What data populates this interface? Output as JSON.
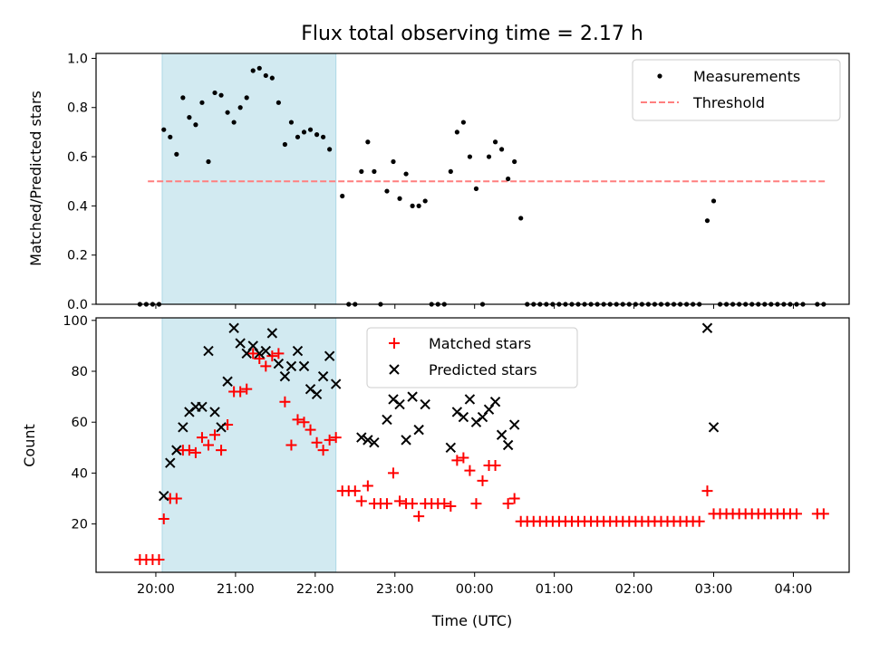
{
  "chart_data": {
    "title": "Flux total observing time = 2.17 h",
    "highlight_span": [
      20.08,
      22.26
    ],
    "xlabel": "Time (UTC)",
    "xlim": [
      19.25,
      28.7
    ],
    "xticks": [
      {
        "value": 20,
        "label": "20:00"
      },
      {
        "value": 21,
        "label": "21:00"
      },
      {
        "value": 22,
        "label": "22:00"
      },
      {
        "value": 23,
        "label": "23:00"
      },
      {
        "value": 24,
        "label": "00:00"
      },
      {
        "value": 25,
        "label": "01:00"
      },
      {
        "value": 26,
        "label": "02:00"
      },
      {
        "value": 27,
        "label": "03:00"
      },
      {
        "value": 28,
        "label": "04:00"
      }
    ],
    "colors": {
      "measurements": "#000000",
      "threshold": "#ff7f7f",
      "matched": "#ff0000",
      "predicted": "#000000",
      "span": "#add8e6"
    },
    "top": {
      "type": "scatter",
      "ylabel": "Matched/Predicted stars",
      "ylim": [
        0,
        1.02
      ],
      "yticks": [
        0.0,
        0.2,
        0.4,
        0.6,
        0.8,
        1.0
      ],
      "ytick_labels": [
        "0.0",
        "0.2",
        "0.4",
        "0.6",
        "0.8",
        "1.0"
      ],
      "legend": {
        "placement": "upper right",
        "measurements_label": "Measurements",
        "threshold_label": "Threshold"
      },
      "threshold": {
        "value": 0.5,
        "x_range": [
          19.9,
          28.4
        ]
      },
      "measurements": [
        [
          19.8,
          0
        ],
        [
          19.88,
          0
        ],
        [
          19.96,
          0
        ],
        [
          20.04,
          0
        ],
        [
          20.1,
          0.71
        ],
        [
          20.18,
          0.68
        ],
        [
          20.26,
          0.61
        ],
        [
          20.34,
          0.84
        ],
        [
          20.42,
          0.76
        ],
        [
          20.5,
          0.73
        ],
        [
          20.58,
          0.82
        ],
        [
          20.66,
          0.58
        ],
        [
          20.74,
          0.86
        ],
        [
          20.82,
          0.85
        ],
        [
          20.9,
          0.78
        ],
        [
          20.98,
          0.74
        ],
        [
          21.06,
          0.8
        ],
        [
          21.14,
          0.84
        ],
        [
          21.22,
          0.95
        ],
        [
          21.3,
          0.96
        ],
        [
          21.38,
          0.93
        ],
        [
          21.46,
          0.92
        ],
        [
          21.54,
          0.82
        ],
        [
          21.62,
          0.65
        ],
        [
          21.7,
          0.74
        ],
        [
          21.78,
          0.68
        ],
        [
          21.86,
          0.7
        ],
        [
          21.94,
          0.71
        ],
        [
          22.02,
          0.69
        ],
        [
          22.1,
          0.68
        ],
        [
          22.18,
          0.63
        ],
        [
          22.34,
          0.44
        ],
        [
          22.42,
          0
        ],
        [
          22.5,
          0
        ],
        [
          22.58,
          0.54
        ],
        [
          22.66,
          0.66
        ],
        [
          22.74,
          0.54
        ],
        [
          22.82,
          0
        ],
        [
          22.9,
          0.46
        ],
        [
          22.98,
          0.58
        ],
        [
          23.06,
          0.43
        ],
        [
          23.14,
          0.53
        ],
        [
          23.22,
          0.4
        ],
        [
          23.3,
          0.4
        ],
        [
          23.38,
          0.42
        ],
        [
          23.46,
          0
        ],
        [
          23.54,
          0
        ],
        [
          23.62,
          0
        ],
        [
          23.7,
          0.54
        ],
        [
          23.78,
          0.7
        ],
        [
          23.86,
          0.74
        ],
        [
          23.94,
          0.6
        ],
        [
          24.02,
          0.47
        ],
        [
          24.1,
          0
        ],
        [
          24.18,
          0.6
        ],
        [
          24.26,
          0.66
        ],
        [
          24.34,
          0.63
        ],
        [
          24.42,
          0.51
        ],
        [
          24.5,
          0.58
        ],
        [
          24.58,
          0.35
        ],
        [
          24.66,
          0
        ],
        [
          24.74,
          0
        ],
        [
          24.82,
          0
        ],
        [
          24.9,
          0
        ],
        [
          24.98,
          0
        ],
        [
          25.06,
          0
        ],
        [
          25.14,
          0
        ],
        [
          25.22,
          0
        ],
        [
          25.3,
          0
        ],
        [
          25.38,
          0
        ],
        [
          25.46,
          0
        ],
        [
          25.54,
          0
        ],
        [
          25.62,
          0
        ],
        [
          25.7,
          0
        ],
        [
          25.78,
          0
        ],
        [
          25.86,
          0
        ],
        [
          25.94,
          0
        ],
        [
          26.02,
          0
        ],
        [
          26.1,
          0
        ],
        [
          26.18,
          0
        ],
        [
          26.26,
          0
        ],
        [
          26.34,
          0
        ],
        [
          26.42,
          0
        ],
        [
          26.5,
          0
        ],
        [
          26.58,
          0
        ],
        [
          26.66,
          0
        ],
        [
          26.74,
          0
        ],
        [
          26.82,
          0
        ],
        [
          26.92,
          0.34
        ],
        [
          27.0,
          0.42
        ],
        [
          27.08,
          0
        ],
        [
          27.16,
          0
        ],
        [
          27.24,
          0
        ],
        [
          27.32,
          0
        ],
        [
          27.4,
          0
        ],
        [
          27.48,
          0
        ],
        [
          27.56,
          0
        ],
        [
          27.64,
          0
        ],
        [
          27.72,
          0
        ],
        [
          27.8,
          0
        ],
        [
          27.88,
          0
        ],
        [
          27.96,
          0
        ],
        [
          28.04,
          0
        ],
        [
          28.12,
          0
        ],
        [
          28.3,
          0
        ],
        [
          28.38,
          0
        ]
      ]
    },
    "bottom": {
      "type": "scatter",
      "ylabel": "Count",
      "ylim": [
        1,
        101
      ],
      "yticks": [
        20,
        40,
        60,
        80,
        100
      ],
      "ytick_labels": [
        "20",
        "40",
        "60",
        "80",
        "100"
      ],
      "legend": {
        "placement": "upper center",
        "matched_label": "Matched stars",
        "predicted_label": "Predicted stars"
      },
      "matched": [
        [
          19.8,
          6
        ],
        [
          19.88,
          6
        ],
        [
          19.96,
          6
        ],
        [
          20.04,
          6
        ],
        [
          20.1,
          22
        ],
        [
          20.18,
          30
        ],
        [
          20.26,
          30
        ],
        [
          20.34,
          49
        ],
        [
          20.42,
          49
        ],
        [
          20.5,
          48
        ],
        [
          20.58,
          54
        ],
        [
          20.66,
          51
        ],
        [
          20.74,
          55
        ],
        [
          20.82,
          49
        ],
        [
          20.9,
          59
        ],
        [
          20.98,
          72
        ],
        [
          21.06,
          72
        ],
        [
          21.14,
          73
        ],
        [
          21.22,
          87
        ],
        [
          21.3,
          85
        ],
        [
          21.38,
          82
        ],
        [
          21.46,
          86
        ],
        [
          21.54,
          87
        ],
        [
          21.62,
          68
        ],
        [
          21.7,
          51
        ],
        [
          21.78,
          61
        ],
        [
          21.86,
          60
        ],
        [
          21.94,
          57
        ],
        [
          22.02,
          52
        ],
        [
          22.1,
          49
        ],
        [
          22.18,
          53
        ],
        [
          22.26,
          54
        ],
        [
          22.34,
          33
        ],
        [
          22.42,
          33
        ],
        [
          22.5,
          33
        ],
        [
          22.58,
          29
        ],
        [
          22.66,
          35
        ],
        [
          22.74,
          28
        ],
        [
          22.82,
          28
        ],
        [
          22.9,
          28
        ],
        [
          22.98,
          40
        ],
        [
          23.06,
          29
        ],
        [
          23.14,
          28
        ],
        [
          23.22,
          28
        ],
        [
          23.3,
          23
        ],
        [
          23.38,
          28
        ],
        [
          23.46,
          28
        ],
        [
          23.54,
          28
        ],
        [
          23.62,
          28
        ],
        [
          23.7,
          27
        ],
        [
          23.78,
          45
        ],
        [
          23.86,
          46
        ],
        [
          23.94,
          41
        ],
        [
          24.02,
          28
        ],
        [
          24.1,
          37
        ],
        [
          24.18,
          43
        ],
        [
          24.26,
          43
        ],
        [
          24.42,
          28
        ],
        [
          24.5,
          30
        ],
        [
          24.58,
          21
        ],
        [
          24.66,
          21
        ],
        [
          24.74,
          21
        ],
        [
          24.82,
          21
        ],
        [
          24.9,
          21
        ],
        [
          24.98,
          21
        ],
        [
          25.06,
          21
        ],
        [
          25.14,
          21
        ],
        [
          25.22,
          21
        ],
        [
          25.3,
          21
        ],
        [
          25.38,
          21
        ],
        [
          25.46,
          21
        ],
        [
          25.54,
          21
        ],
        [
          25.62,
          21
        ],
        [
          25.7,
          21
        ],
        [
          25.78,
          21
        ],
        [
          25.86,
          21
        ],
        [
          25.94,
          21
        ],
        [
          26.02,
          21
        ],
        [
          26.1,
          21
        ],
        [
          26.18,
          21
        ],
        [
          26.26,
          21
        ],
        [
          26.34,
          21
        ],
        [
          26.42,
          21
        ],
        [
          26.5,
          21
        ],
        [
          26.58,
          21
        ],
        [
          26.66,
          21
        ],
        [
          26.74,
          21
        ],
        [
          26.82,
          21
        ],
        [
          26.92,
          33
        ],
        [
          27.0,
          24
        ],
        [
          27.08,
          24
        ],
        [
          27.16,
          24
        ],
        [
          27.24,
          24
        ],
        [
          27.32,
          24
        ],
        [
          27.4,
          24
        ],
        [
          27.48,
          24
        ],
        [
          27.56,
          24
        ],
        [
          27.64,
          24
        ],
        [
          27.72,
          24
        ],
        [
          27.8,
          24
        ],
        [
          27.88,
          24
        ],
        [
          27.96,
          24
        ],
        [
          28.04,
          24
        ],
        [
          28.3,
          24
        ],
        [
          28.38,
          24
        ]
      ],
      "predicted": [
        [
          20.1,
          31
        ],
        [
          20.18,
          44
        ],
        [
          20.26,
          49
        ],
        [
          20.34,
          58
        ],
        [
          20.42,
          64
        ],
        [
          20.5,
          66
        ],
        [
          20.58,
          66
        ],
        [
          20.66,
          88
        ],
        [
          20.74,
          64
        ],
        [
          20.82,
          58
        ],
        [
          20.9,
          76
        ],
        [
          20.98,
          97
        ],
        [
          21.06,
          91
        ],
        [
          21.14,
          87
        ],
        [
          21.22,
          90
        ],
        [
          21.3,
          87
        ],
        [
          21.38,
          88
        ],
        [
          21.46,
          95
        ],
        [
          21.54,
          83
        ],
        [
          21.62,
          78
        ],
        [
          21.7,
          82
        ],
        [
          21.78,
          88
        ],
        [
          21.86,
          82
        ],
        [
          21.94,
          73
        ],
        [
          22.02,
          71
        ],
        [
          22.1,
          78
        ],
        [
          22.18,
          86
        ],
        [
          22.26,
          75
        ],
        [
          22.58,
          54
        ],
        [
          22.66,
          53
        ],
        [
          22.74,
          52
        ],
        [
          22.9,
          61
        ],
        [
          22.98,
          69
        ],
        [
          23.06,
          67
        ],
        [
          23.14,
          53
        ],
        [
          23.22,
          70
        ],
        [
          23.3,
          57
        ],
        [
          23.38,
          67
        ],
        [
          23.7,
          50
        ],
        [
          23.78,
          64
        ],
        [
          23.86,
          62
        ],
        [
          23.94,
          69
        ],
        [
          24.02,
          60
        ],
        [
          24.1,
          62
        ],
        [
          24.18,
          65
        ],
        [
          24.26,
          68
        ],
        [
          24.34,
          55
        ],
        [
          24.42,
          51
        ],
        [
          24.5,
          59
        ],
        [
          26.92,
          97
        ],
        [
          27.0,
          58
        ]
      ]
    }
  }
}
